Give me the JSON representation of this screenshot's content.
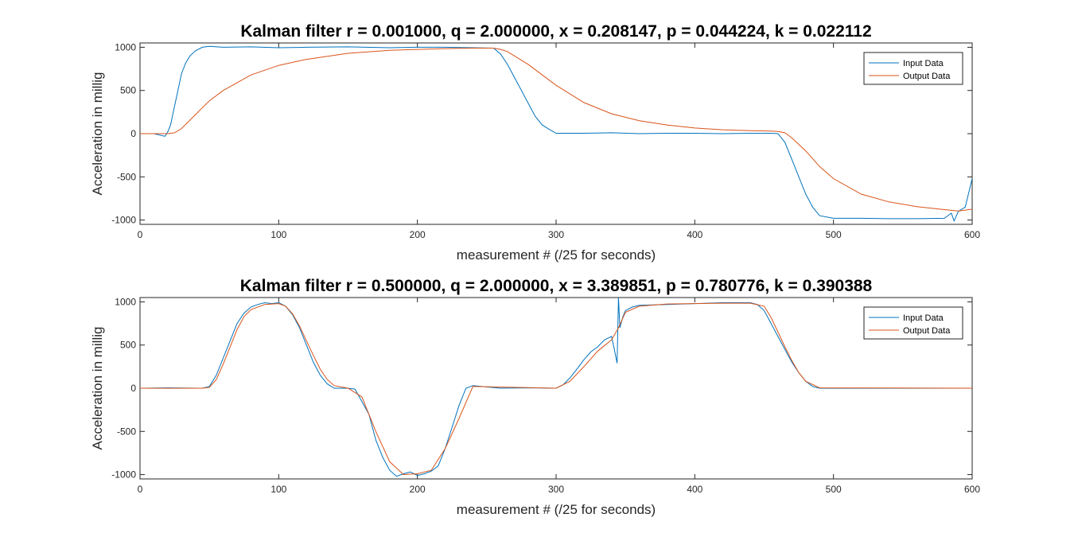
{
  "chart_data": [
    {
      "type": "line",
      "title": "Kalman filter r = 0.001000, q = 2.000000, x = 0.208147, p = 0.044224, k = 0.022112",
      "xlabel": "measurement # (/25 for seconds)",
      "ylabel": "Acceleration in millig",
      "xlim": [
        0,
        600
      ],
      "ylim": [
        -1050,
        1050
      ],
      "xticks": [
        0,
        100,
        200,
        300,
        400,
        500,
        600
      ],
      "yticks": [
        -1000,
        -500,
        0,
        500,
        1000
      ],
      "grid": false,
      "legend_position": "top-right",
      "series": [
        {
          "name": "Input Data",
          "color": "#0072BD",
          "x": [
            0,
            10,
            18,
            20,
            22,
            24,
            26,
            28,
            30,
            33,
            36,
            40,
            45,
            50,
            60,
            80,
            100,
            120,
            150,
            180,
            200,
            220,
            240,
            255,
            260,
            265,
            270,
            275,
            280,
            285,
            290,
            295,
            300,
            320,
            340,
            360,
            380,
            400,
            420,
            440,
            455,
            460,
            465,
            470,
            475,
            480,
            485,
            490,
            500,
            520,
            540,
            560,
            580,
            585,
            587,
            590,
            595,
            600
          ],
          "y": [
            0,
            0,
            -30,
            20,
            100,
            250,
            400,
            550,
            700,
            820,
            900,
            960,
            1000,
            1010,
            1000,
            1005,
            995,
            1000,
            1005,
            995,
            1000,
            1000,
            995,
            990,
            920,
            800,
            650,
            500,
            350,
            200,
            100,
            50,
            5,
            5,
            10,
            0,
            5,
            5,
            0,
            5,
            5,
            0,
            -100,
            -300,
            -500,
            -700,
            -850,
            -950,
            -980,
            -980,
            -985,
            -985,
            -980,
            -920,
            -1010,
            -900,
            -850,
            -520
          ]
        },
        {
          "name": "Output Data",
          "color": "#D95319",
          "x": [
            0,
            20,
            25,
            30,
            40,
            50,
            60,
            80,
            100,
            120,
            150,
            180,
            200,
            220,
            240,
            255,
            260,
            265,
            270,
            280,
            290,
            300,
            320,
            340,
            360,
            380,
            400,
            420,
            440,
            455,
            460,
            465,
            470,
            480,
            490,
            500,
            520,
            540,
            560,
            580,
            590,
            600
          ],
          "y": [
            0,
            0,
            10,
            60,
            220,
            380,
            500,
            680,
            790,
            860,
            930,
            965,
            975,
            985,
            990,
            990,
            975,
            950,
            900,
            800,
            680,
            560,
            360,
            230,
            150,
            100,
            65,
            45,
            35,
            30,
            25,
            10,
            -50,
            -200,
            -380,
            -520,
            -700,
            -790,
            -845,
            -880,
            -895,
            -875
          ]
        }
      ]
    },
    {
      "type": "line",
      "title": "Kalman filter r = 0.500000, q = 2.000000, x = 3.389851, p = 0.780776, k = 0.390388",
      "xlabel": "measurement # (/25 for seconds)",
      "ylabel": "Acceleration in millig",
      "xlim": [
        0,
        600
      ],
      "ylim": [
        -1050,
        1050
      ],
      "xticks": [
        0,
        100,
        200,
        300,
        400,
        500,
        600
      ],
      "yticks": [
        -1000,
        -500,
        0,
        500,
        1000
      ],
      "grid": false,
      "legend_position": "top-right",
      "series": [
        {
          "name": "Input Data",
          "color": "#0072BD",
          "x": [
            0,
            20,
            45,
            50,
            55,
            60,
            65,
            70,
            75,
            80,
            85,
            90,
            95,
            100,
            105,
            110,
            115,
            120,
            125,
            130,
            135,
            140,
            145,
            150,
            155,
            165,
            170,
            175,
            180,
            185,
            190,
            195,
            200,
            205,
            210,
            215,
            220,
            225,
            230,
            235,
            240,
            260,
            280,
            300,
            305,
            310,
            315,
            320,
            325,
            330,
            335,
            340,
            342,
            344,
            345,
            346,
            348,
            350,
            355,
            360,
            380,
            400,
            420,
            440,
            445,
            450,
            455,
            460,
            465,
            470,
            475,
            480,
            485,
            490,
            520,
            560,
            600
          ],
          "y": [
            0,
            5,
            0,
            20,
            150,
            350,
            550,
            750,
            870,
            940,
            970,
            990,
            980,
            990,
            950,
            850,
            700,
            500,
            300,
            150,
            50,
            0,
            0,
            0,
            -10,
            -300,
            -600,
            -800,
            -950,
            -1020,
            -990,
            -970,
            -1010,
            -990,
            -960,
            -900,
            -700,
            -450,
            -200,
            0,
            30,
            0,
            5,
            0,
            40,
            120,
            220,
            330,
            420,
            480,
            560,
            600,
            450,
            290,
            1050,
            700,
            820,
            900,
            940,
            960,
            970,
            980,
            990,
            990,
            970,
            900,
            750,
            600,
            450,
            300,
            180,
            80,
            20,
            0,
            0,
            0,
            0
          ]
        },
        {
          "name": "Output Data",
          "color": "#D95319",
          "x": [
            0,
            45,
            50,
            55,
            60,
            65,
            70,
            75,
            80,
            90,
            100,
            105,
            110,
            115,
            120,
            125,
            130,
            135,
            140,
            150,
            160,
            170,
            180,
            190,
            200,
            210,
            220,
            230,
            240,
            300,
            310,
            320,
            330,
            340,
            345,
            350,
            360,
            380,
            400,
            420,
            440,
            450,
            455,
            460,
            465,
            470,
            475,
            480,
            490,
            600
          ],
          "y": [
            0,
            0,
            10,
            100,
            280,
            480,
            680,
            830,
            910,
            970,
            980,
            950,
            860,
            720,
            550,
            380,
            220,
            100,
            30,
            0,
            -100,
            -500,
            -850,
            -1000,
            -990,
            -950,
            -700,
            -350,
            20,
            0,
            80,
            250,
            430,
            560,
            700,
            880,
            950,
            975,
            980,
            985,
            985,
            950,
            820,
            650,
            480,
            320,
            180,
            80,
            5,
            0
          ]
        }
      ]
    }
  ]
}
